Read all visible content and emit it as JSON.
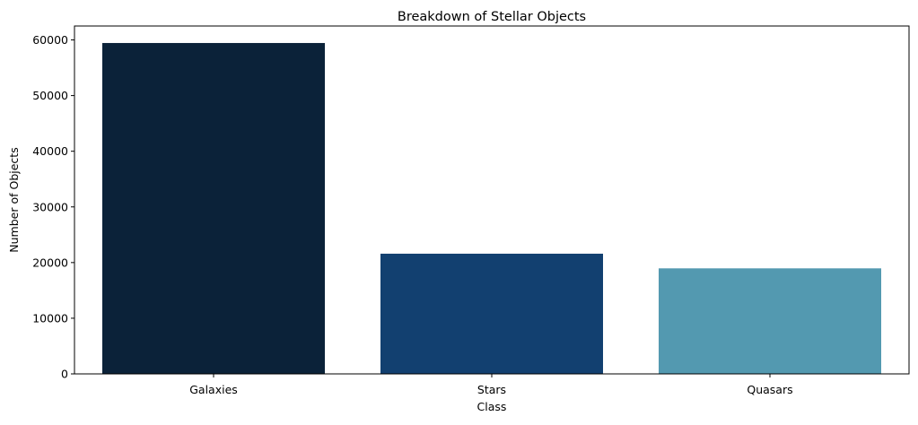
{
  "chart_data": {
    "type": "bar",
    "title": "Breakdown of Stellar Objects",
    "xlabel": "Class",
    "ylabel": "Number of Objects",
    "categories": [
      "Galaxies",
      "Stars",
      "Quasars"
    ],
    "values": [
      59445,
      21594,
      18961
    ],
    "colors": [
      "#0b2239",
      "#124070",
      "#5399b0"
    ],
    "ylim": [
      0,
      62500
    ],
    "yticks": [
      0,
      10000,
      20000,
      30000,
      40000,
      50000,
      60000
    ],
    "grid": false,
    "legend": "none"
  }
}
